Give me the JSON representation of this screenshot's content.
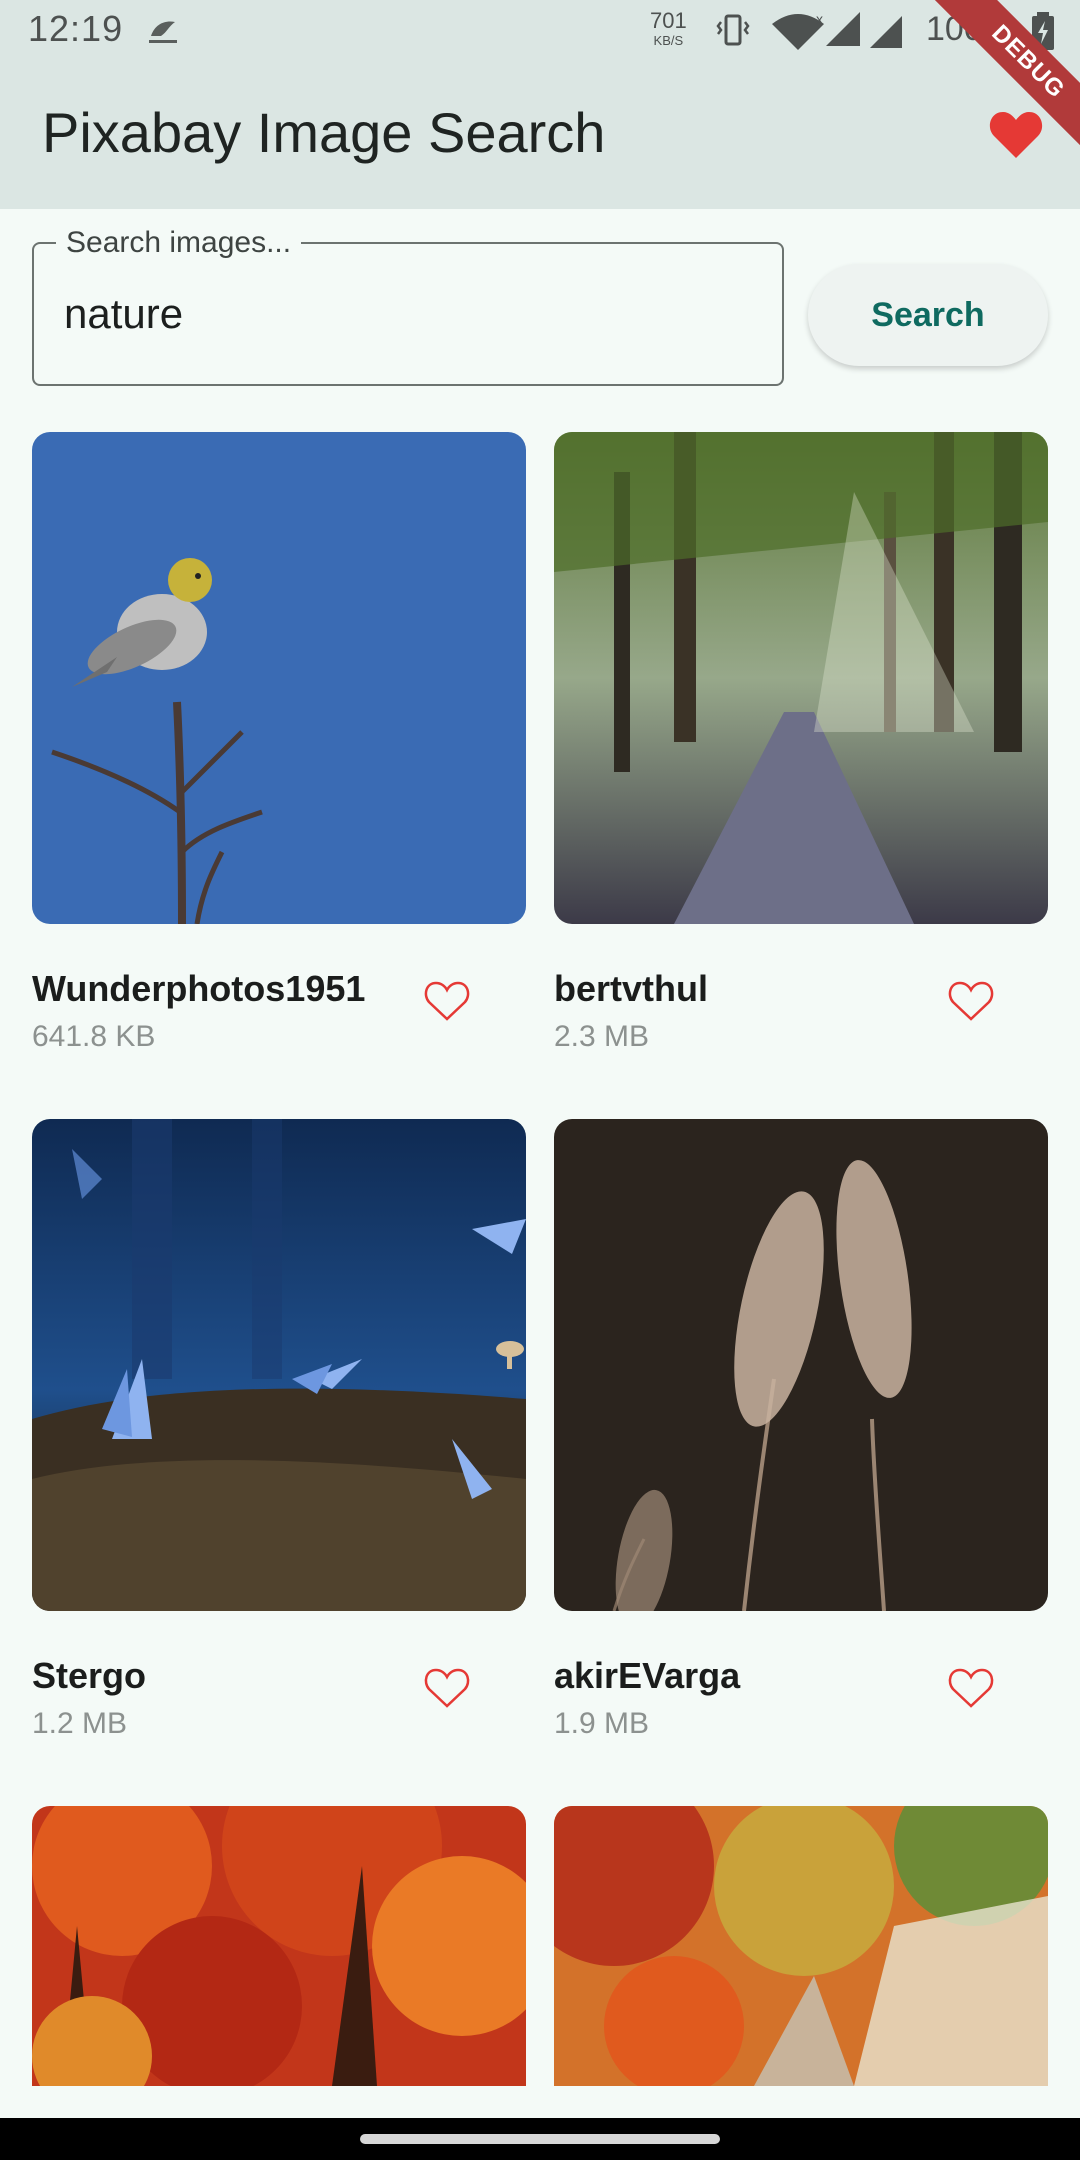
{
  "status_bar": {
    "time": "12:19",
    "net_speed": "701",
    "net_unit": "KB/S",
    "battery": "100%",
    "debug_banner": "DEBUG"
  },
  "app_bar": {
    "title": "Pixabay Image Search"
  },
  "search": {
    "label": "Search images...",
    "value": "nature",
    "button_label": "Search"
  },
  "results": [
    {
      "author": "Wunderphotos1951",
      "size": "641.8 KB",
      "image": "bird on branch",
      "favorited": false
    },
    {
      "author": "bertvthul",
      "size": "2.3 MB",
      "image": "forest path with sun rays",
      "favorited": false
    },
    {
      "author": "Stergo",
      "size": "1.2 MB",
      "image": "blue butterflies",
      "favorited": false
    },
    {
      "author": "akirEVarga",
      "size": "1.9 MB",
      "image": "grass seed heads",
      "favorited": false
    },
    {
      "author": "",
      "size": "",
      "image": "autumn trees",
      "favorited": false
    },
    {
      "author": "",
      "size": "",
      "image": "autumn forest road",
      "favorited": false
    }
  ],
  "colors": {
    "app_bar_bg": "#dbe6e3",
    "page_bg": "#f4faf7",
    "accent": "#0f6a60",
    "heart": "#e53935",
    "debug": "#b13a3a"
  }
}
